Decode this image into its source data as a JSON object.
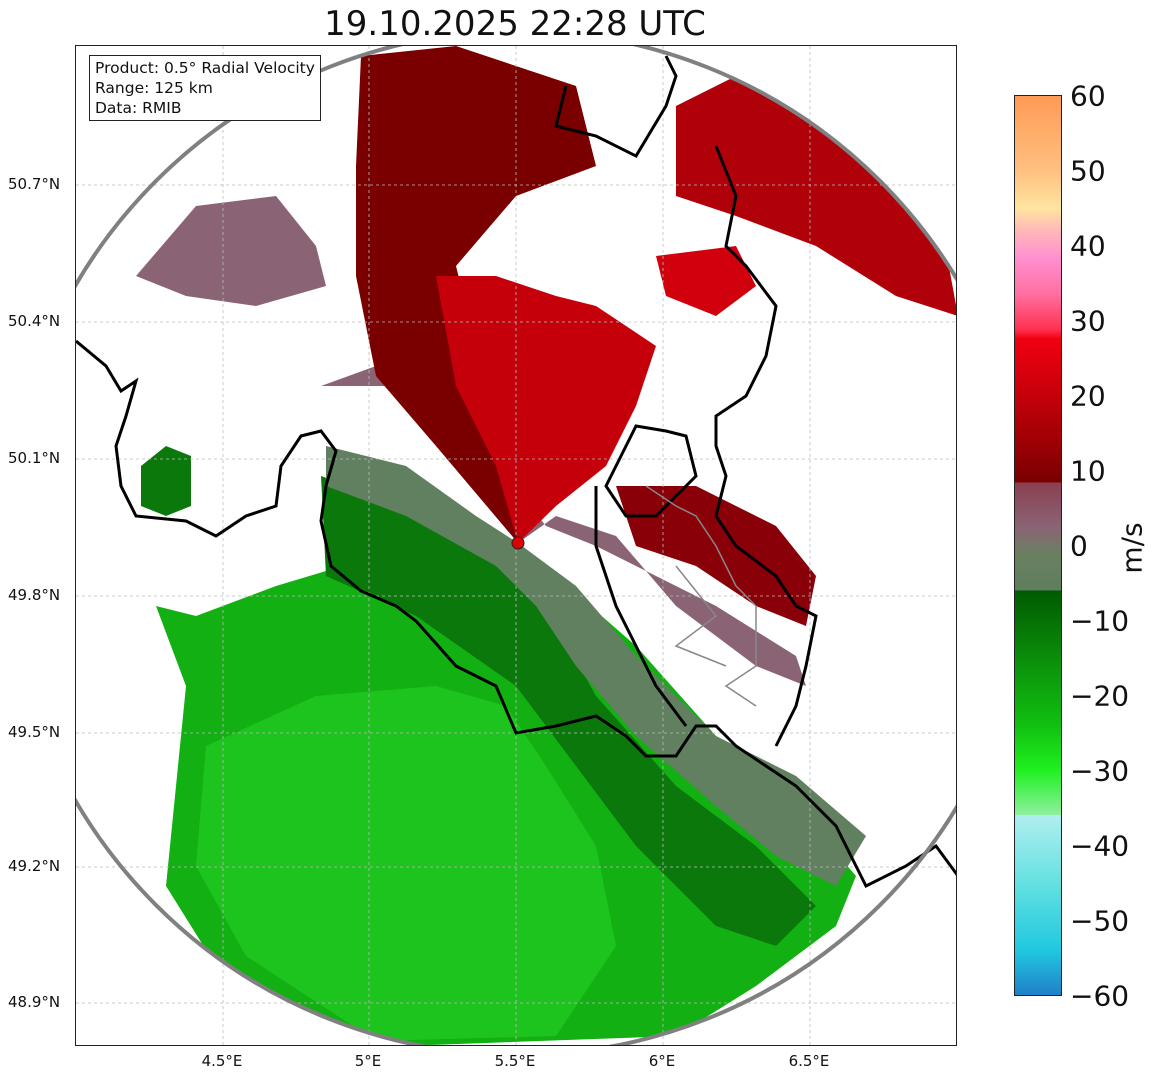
{
  "title": "19.10.2025 22:28 UTC",
  "info": {
    "product": "Product: 0.5° Radial Velocity",
    "range": "Range: 125 km",
    "data": "Data: RMIB"
  },
  "lat_ticks": [
    "50.7°N",
    "50.4°N",
    "50.1°N",
    "49.8°N",
    "49.5°N",
    "49.2°N",
    "48.9°N"
  ],
  "lon_ticks": [
    "4.5°E",
    "5°E",
    "5.5°E",
    "6°E",
    "6.5°E"
  ],
  "colorbar": {
    "label": "m/s",
    "ticks": [
      "60",
      "50",
      "40",
      "30",
      "20",
      "10",
      "0",
      "−10",
      "−20",
      "−30",
      "−40",
      "−50",
      "−60"
    ],
    "min": -60,
    "max": 60
  },
  "colors": {
    "receding_dark": "#7a0000",
    "receding": "#c8000a",
    "near_zero_pos": "#8a6070",
    "near_zero_neg": "#5e7e5e",
    "approaching_dark": "#0a6a0a",
    "approaching": "#10b010",
    "approaching_light": "#20c820",
    "border": "#000000",
    "range_ring": "#808080",
    "radar_site": "#e00000"
  }
}
